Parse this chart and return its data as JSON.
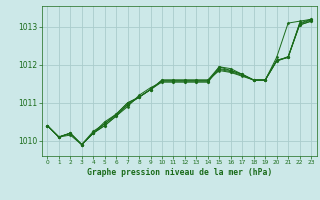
{
  "title": "Graphe pression niveau de la mer (hPa)",
  "bg_color": "#cce8e8",
  "grid_color": "#aacccc",
  "line_color": "#1a6b1a",
  "marker_color": "#1a6b1a",
  "xlim": [
    -0.5,
    23.5
  ],
  "ylim": [
    1009.6,
    1013.55
  ],
  "yticks": [
    1010,
    1011,
    1012,
    1013
  ],
  "xticks": [
    0,
    1,
    2,
    3,
    4,
    5,
    6,
    7,
    8,
    9,
    10,
    11,
    12,
    13,
    14,
    15,
    16,
    17,
    18,
    19,
    20,
    21,
    22,
    23
  ],
  "series": [
    [
      1010.4,
      1010.1,
      1010.2,
      1009.9,
      1010.2,
      1010.5,
      1010.7,
      1011.0,
      1011.15,
      1011.35,
      1011.6,
      1011.6,
      1011.6,
      1011.6,
      1011.6,
      1011.95,
      1011.85,
      1011.75,
      1011.6,
      1011.6,
      1012.2,
      1013.1,
      1013.15,
      1013.2
    ],
    [
      1010.4,
      1010.1,
      1010.2,
      1009.9,
      1010.2,
      1010.4,
      1010.65,
      1010.9,
      1011.2,
      1011.4,
      1011.55,
      1011.55,
      1011.55,
      1011.55,
      1011.55,
      1011.95,
      1011.9,
      1011.75,
      1011.6,
      1011.6,
      1012.1,
      1012.2,
      1013.05,
      1013.15
    ],
    [
      1010.4,
      1010.1,
      1010.2,
      1009.9,
      1010.25,
      1010.45,
      1010.7,
      1011.0,
      1011.15,
      1011.35,
      1011.6,
      1011.6,
      1011.6,
      1011.6,
      1011.6,
      1011.85,
      1011.8,
      1011.7,
      1011.6,
      1011.6,
      1012.12,
      1012.2,
      1013.1,
      1013.2
    ],
    [
      1010.4,
      1010.1,
      1010.15,
      1009.9,
      1010.2,
      1010.4,
      1010.65,
      1010.95,
      1011.15,
      1011.35,
      1011.55,
      1011.55,
      1011.55,
      1011.55,
      1011.55,
      1011.9,
      1011.85,
      1011.75,
      1011.6,
      1011.6,
      1012.1,
      1012.22,
      1013.05,
      1013.15
    ],
    [
      1010.4,
      1010.1,
      1010.2,
      1009.9,
      1010.2,
      1010.45,
      1010.68,
      1010.95,
      1011.15,
      1011.35,
      1011.58,
      1011.58,
      1011.58,
      1011.58,
      1011.58,
      1011.88,
      1011.82,
      1011.72,
      1011.6,
      1011.6,
      1012.12,
      1012.2,
      1013.08,
      1013.18
    ]
  ]
}
